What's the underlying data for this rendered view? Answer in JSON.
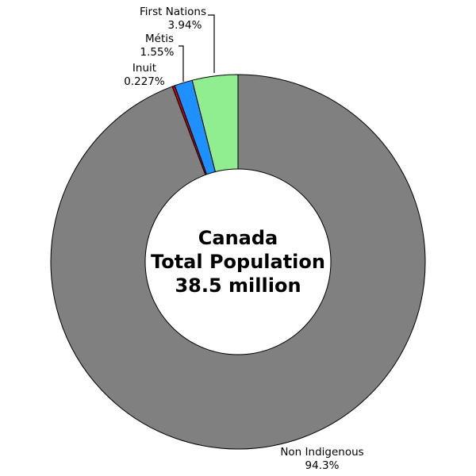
{
  "chart_data": {
    "type": "pie",
    "variant": "donut",
    "center_text": [
      "Canada",
      "Total Population",
      "38.5 million"
    ],
    "slices": [
      {
        "name": "First Nations",
        "value": 3.94,
        "value_label": "3.94%",
        "color": "#90EE90"
      },
      {
        "name": "Métis",
        "value": 1.55,
        "value_label": "1.55%",
        "color": "#1E90FF"
      },
      {
        "name": "Inuit",
        "value": 0.227,
        "value_label": "0.227%",
        "color": "#CC0000"
      },
      {
        "name": "Non Indigenous",
        "value": 94.3,
        "value_label": "94.3%",
        "color": "#808080"
      }
    ],
    "direction": "counterclockwise",
    "start": "top",
    "legend": "none"
  }
}
